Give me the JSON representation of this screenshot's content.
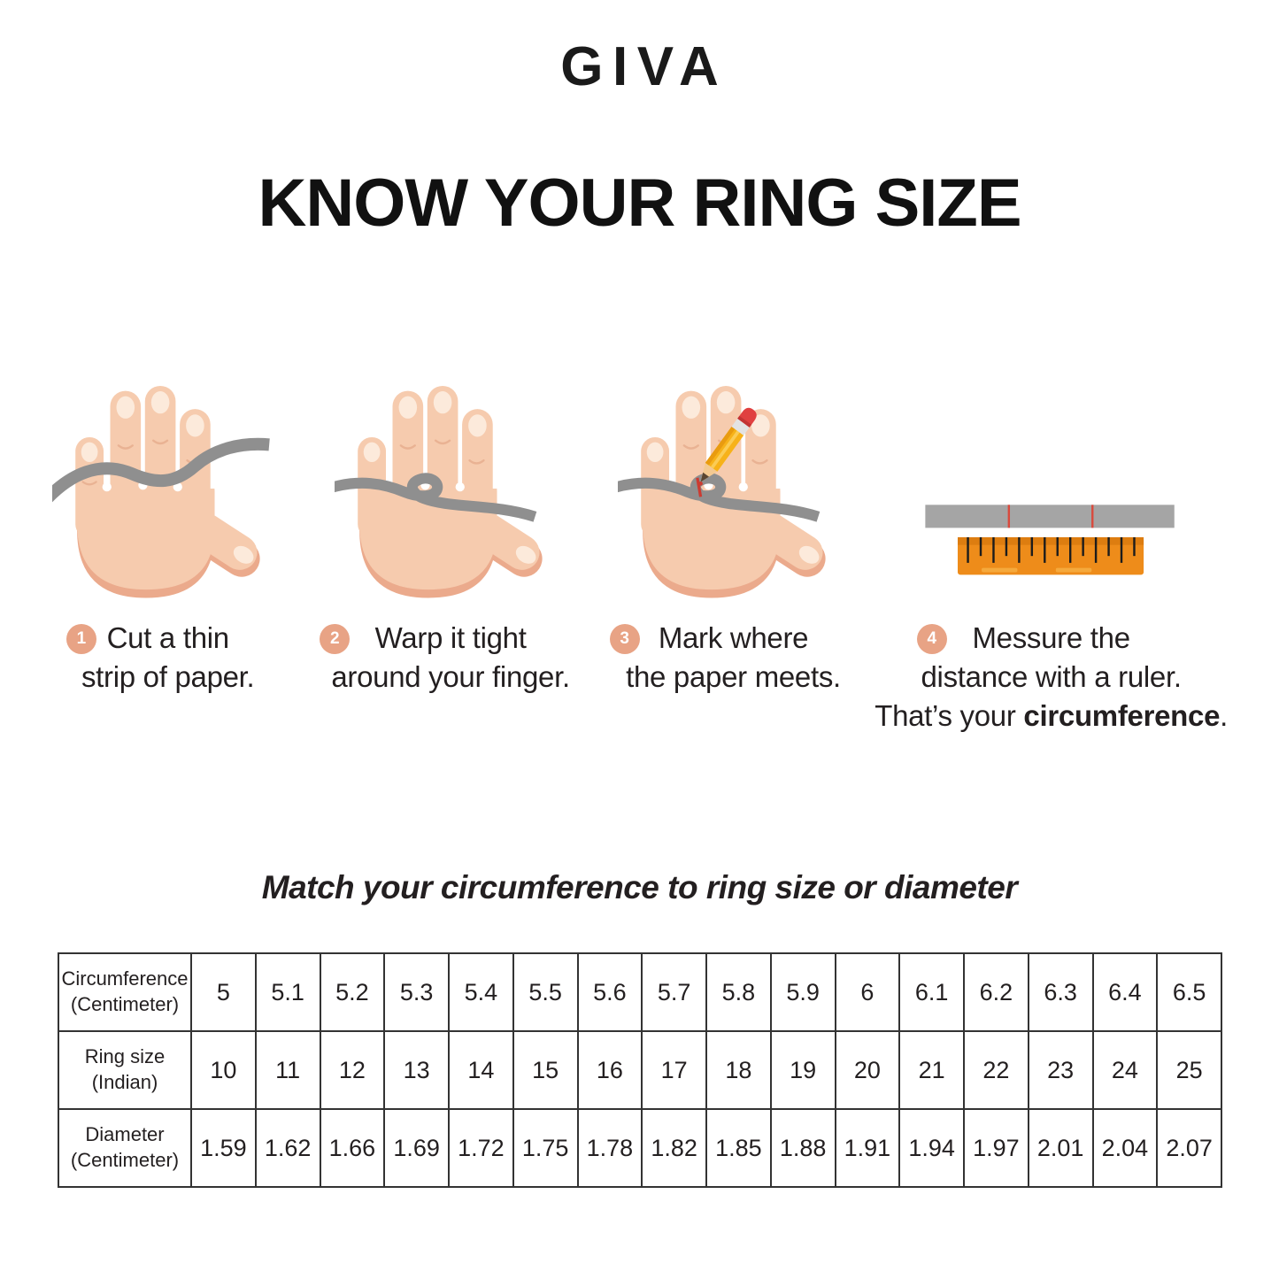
{
  "brand": "GIVA",
  "title": "KNOW YOUR RING SIZE",
  "steps": [
    {
      "num": "1",
      "line1": "Cut a thin",
      "line2": "strip of paper."
    },
    {
      "num": "2",
      "line1": "Warp it tight",
      "line2": "around your finger."
    },
    {
      "num": "3",
      "line1": "Mark where",
      "line2": "the paper meets."
    },
    {
      "num": "4",
      "line1": "Messure the",
      "line2": "distance with a ruler.",
      "line3_prefix": "That’s your ",
      "line3_bold": "circumference",
      "line3_suffix": "."
    }
  ],
  "match_heading": "Match your circumference to ring size or diameter",
  "table": {
    "rows": [
      {
        "label_line1": "Circumference",
        "label_line2": "(Centimeter)",
        "values": [
          "5",
          "5.1",
          "5.2",
          "5.3",
          "5.4",
          "5.5",
          "5.6",
          "5.7",
          "5.8",
          "5.9",
          "6",
          "6.1",
          "6.2",
          "6.3",
          "6.4",
          "6.5"
        ]
      },
      {
        "label_line1": "Ring size",
        "label_line2": "(Indian)",
        "values": [
          "10",
          "11",
          "12",
          "13",
          "14",
          "15",
          "16",
          "17",
          "18",
          "19",
          "20",
          "21",
          "22",
          "23",
          "24",
          "25"
        ]
      },
      {
        "label_line1": "Diameter",
        "label_line2": "(Centimeter)",
        "values": [
          "1.59",
          "1.62",
          "1.66",
          "1.69",
          "1.72",
          "1.75",
          "1.78",
          "1.82",
          "1.85",
          "1.88",
          "1.91",
          "1.94",
          "1.97",
          "2.01",
          "2.04",
          "2.07"
        ]
      }
    ]
  },
  "colors": {
    "step_badge": "#E8A385",
    "skin": "#F6CBAE",
    "skin_shadow": "#EBAA8C",
    "strip_gray": "#8F8F8F",
    "ruler_orange": "#EE8C1A",
    "mark_red": "#CC3B31",
    "text": "#231F20"
  }
}
